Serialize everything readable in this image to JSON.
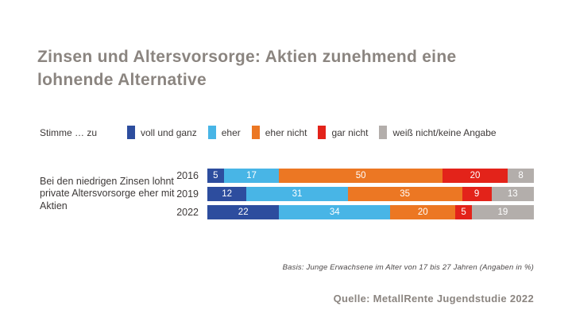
{
  "title": "Zinsen und Altersvorsorge: Aktien zunehmend eine lohnende Alternative",
  "legend": {
    "prefix": "Stimme … zu",
    "items": [
      {
        "label": "voll und ganz",
        "color": "#2d4d9e"
      },
      {
        "label": "eher",
        "color": "#48b5e6"
      },
      {
        "label": "eher nicht",
        "color": "#ec7723"
      },
      {
        "label": "gar nicht",
        "color": "#e3231a"
      },
      {
        "label": "weiß nicht/keine Angabe",
        "color": "#b3aeab"
      }
    ]
  },
  "chart_data": {
    "type": "bar",
    "orientation": "horizontal",
    "stacked": true,
    "statement": "Bei den niedrigen Zinsen lohnt private Altersvorsorge eher mit Aktien",
    "categories": [
      "2016",
      "2019",
      "2022"
    ],
    "series": [
      {
        "name": "voll und ganz",
        "color": "#2d4d9e",
        "values": [
          5,
          12,
          22
        ]
      },
      {
        "name": "eher",
        "color": "#48b5e6",
        "values": [
          17,
          31,
          34
        ]
      },
      {
        "name": "eher nicht",
        "color": "#ec7723",
        "values": [
          50,
          35,
          20
        ]
      },
      {
        "name": "gar nicht",
        "color": "#e3231a",
        "values": [
          20,
          9,
          5
        ]
      },
      {
        "name": "weiß nicht/keine Angabe",
        "color": "#b3aeab",
        "values": [
          8,
          13,
          19
        ]
      }
    ],
    "value_unit": "%",
    "xlim": [
      0,
      100
    ],
    "legend_position": "top",
    "grid": false
  },
  "footnote": "Basis: Junge Erwachsene im Alter von 17 bis 27 Jahren (Angaben in %)",
  "source": "Quelle: MetallRente Jugendstudie 2022",
  "colors": {
    "title_gray": "#8b8580",
    "text_dark": "#3e3a39",
    "background": "#ffffff"
  }
}
